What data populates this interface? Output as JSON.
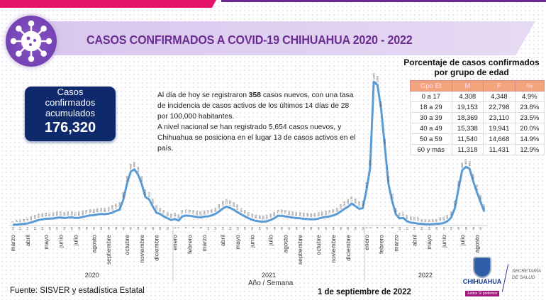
{
  "header": {
    "title": "CASOS CONFIRMADOS A COVID-19 CHIHUAHUA 2020 - 2022"
  },
  "summary": {
    "label_lines": [
      "Casos",
      "confirmados",
      "acumulados"
    ],
    "total": "176,320"
  },
  "paragraph": {
    "p1_a": "Al día de hoy se registraron ",
    "p1_bold": "358",
    "p1_b": " casos nuevos, con una tasa de incidencia de casos activos de los últimos 14 días de 28 por 100,000 habitantes.",
    "p2": "A nivel nacional se han registrado 5,654 casos nuevos, y Chihuahua se posiciona en el lugar 13 de casos activos en el país."
  },
  "age_table": {
    "title_lines": [
      "Porcentaje de casos confirmados",
      "por grupo de edad"
    ],
    "headers": [
      "Gpo Et",
      "M",
      "F",
      "%"
    ],
    "rows": [
      [
        "0 a 17",
        "4,308",
        "4,348",
        "4.9%"
      ],
      [
        "18 a 29",
        "19,153",
        "22,798",
        "23.8%"
      ],
      [
        "30 a 39",
        "18,369",
        "23,110",
        "23.5%"
      ],
      [
        "40 a 49",
        "15,338",
        "19,941",
        "20.0%"
      ],
      [
        "50 a 59",
        "11,540",
        "14,668",
        "14.9%"
      ],
      [
        "60 y más",
        "11,318",
        "11,431",
        "12.9%"
      ]
    ]
  },
  "chart_data": {
    "type": "line",
    "xlabel": "Año / Semana",
    "ylim": [
      0,
      12000
    ],
    "grid": false,
    "years": [
      {
        "label": "2020",
        "start_week": 10,
        "values": [
          2,
          14,
          61,
          80,
          117,
          200,
          300,
          400,
          450,
          500,
          517,
          530,
          590,
          610,
          560,
          600,
          620,
          571,
          580,
          660,
          720,
          780,
          800,
          860,
          900,
          880,
          930,
          1000,
          1150,
          1260,
          2086,
          3409,
          4408,
          4600,
          4183,
          3400,
          2312,
          2116,
          1539,
          1000,
          900,
          700,
          550,
          400
        ],
        "months": [
          [
            "marzo",
            10
          ],
          [
            "abril",
            14
          ],
          [
            "mayo",
            19
          ],
          [
            "junio",
            23
          ],
          [
            "julio",
            27
          ],
          [
            "agosto",
            32
          ],
          [
            "septiembre",
            36
          ],
          [
            "octubre",
            41
          ],
          [
            "noviembre",
            45
          ],
          [
            "diciembre",
            49
          ]
        ]
      },
      {
        "label": "2021",
        "start_week": 1,
        "values": [
          483,
          350,
          700,
          771,
          752,
          700,
          650,
          620,
          680,
          700,
          780,
          900,
          1100,
          1350,
          1513,
          1400,
          1250,
          1050,
          870,
          700,
          550,
          420,
          330,
          280,
          260,
          300,
          400,
          550,
          761,
          750,
          700,
          650,
          600,
          560,
          540,
          500,
          480,
          450,
          460,
          520,
          600,
          650,
          700,
          780,
          900,
          1100,
          1316,
          1500,
          1767,
          1545,
          1330,
          1379
        ],
        "months": [
          [
            "enero",
            1
          ],
          [
            "febrero",
            5
          ],
          [
            "marzo",
            9
          ],
          [
            "abril",
            14
          ],
          [
            "mayo",
            18
          ],
          [
            "junio",
            22
          ],
          [
            "julio",
            27
          ],
          [
            "agosto",
            31
          ],
          [
            "septiembre",
            35
          ],
          [
            "octubre",
            40
          ],
          [
            "noviembre",
            44
          ],
          [
            "diciembre",
            48
          ]
        ]
      },
      {
        "label": "2022",
        "start_week": 1,
        "values": [
          2878,
          4698,
          11867,
          11608,
          9594,
          6504,
          3371,
          1952,
          866,
          531,
          577,
          300,
          180,
          150,
          100,
          80,
          60,
          50,
          60,
          80,
          100,
          150,
          300,
          600,
          1373,
          2988,
          4520,
          4813,
          4653,
          3600,
          2709,
          1887,
          1087
        ],
        "months": [
          [
            "enero",
            1
          ],
          [
            "febrero",
            5
          ],
          [
            "marzo",
            9
          ],
          [
            "abril",
            14
          ],
          [
            "mayo",
            18
          ],
          [
            "junio",
            22
          ],
          [
            "julio",
            27
          ],
          [
            "agosto",
            31
          ]
        ]
      }
    ],
    "line_color": "#5b9bd5"
  },
  "footer": {
    "source": "Fuente: SISVER y estadística Estatal",
    "date": "1 de septiembre de 2022",
    "logo_name": "CHIHUAHUA",
    "logo_motto": "Juntos Sí podemos",
    "dept_lines": [
      "SECRETARÍA",
      "DE SALUD"
    ]
  }
}
